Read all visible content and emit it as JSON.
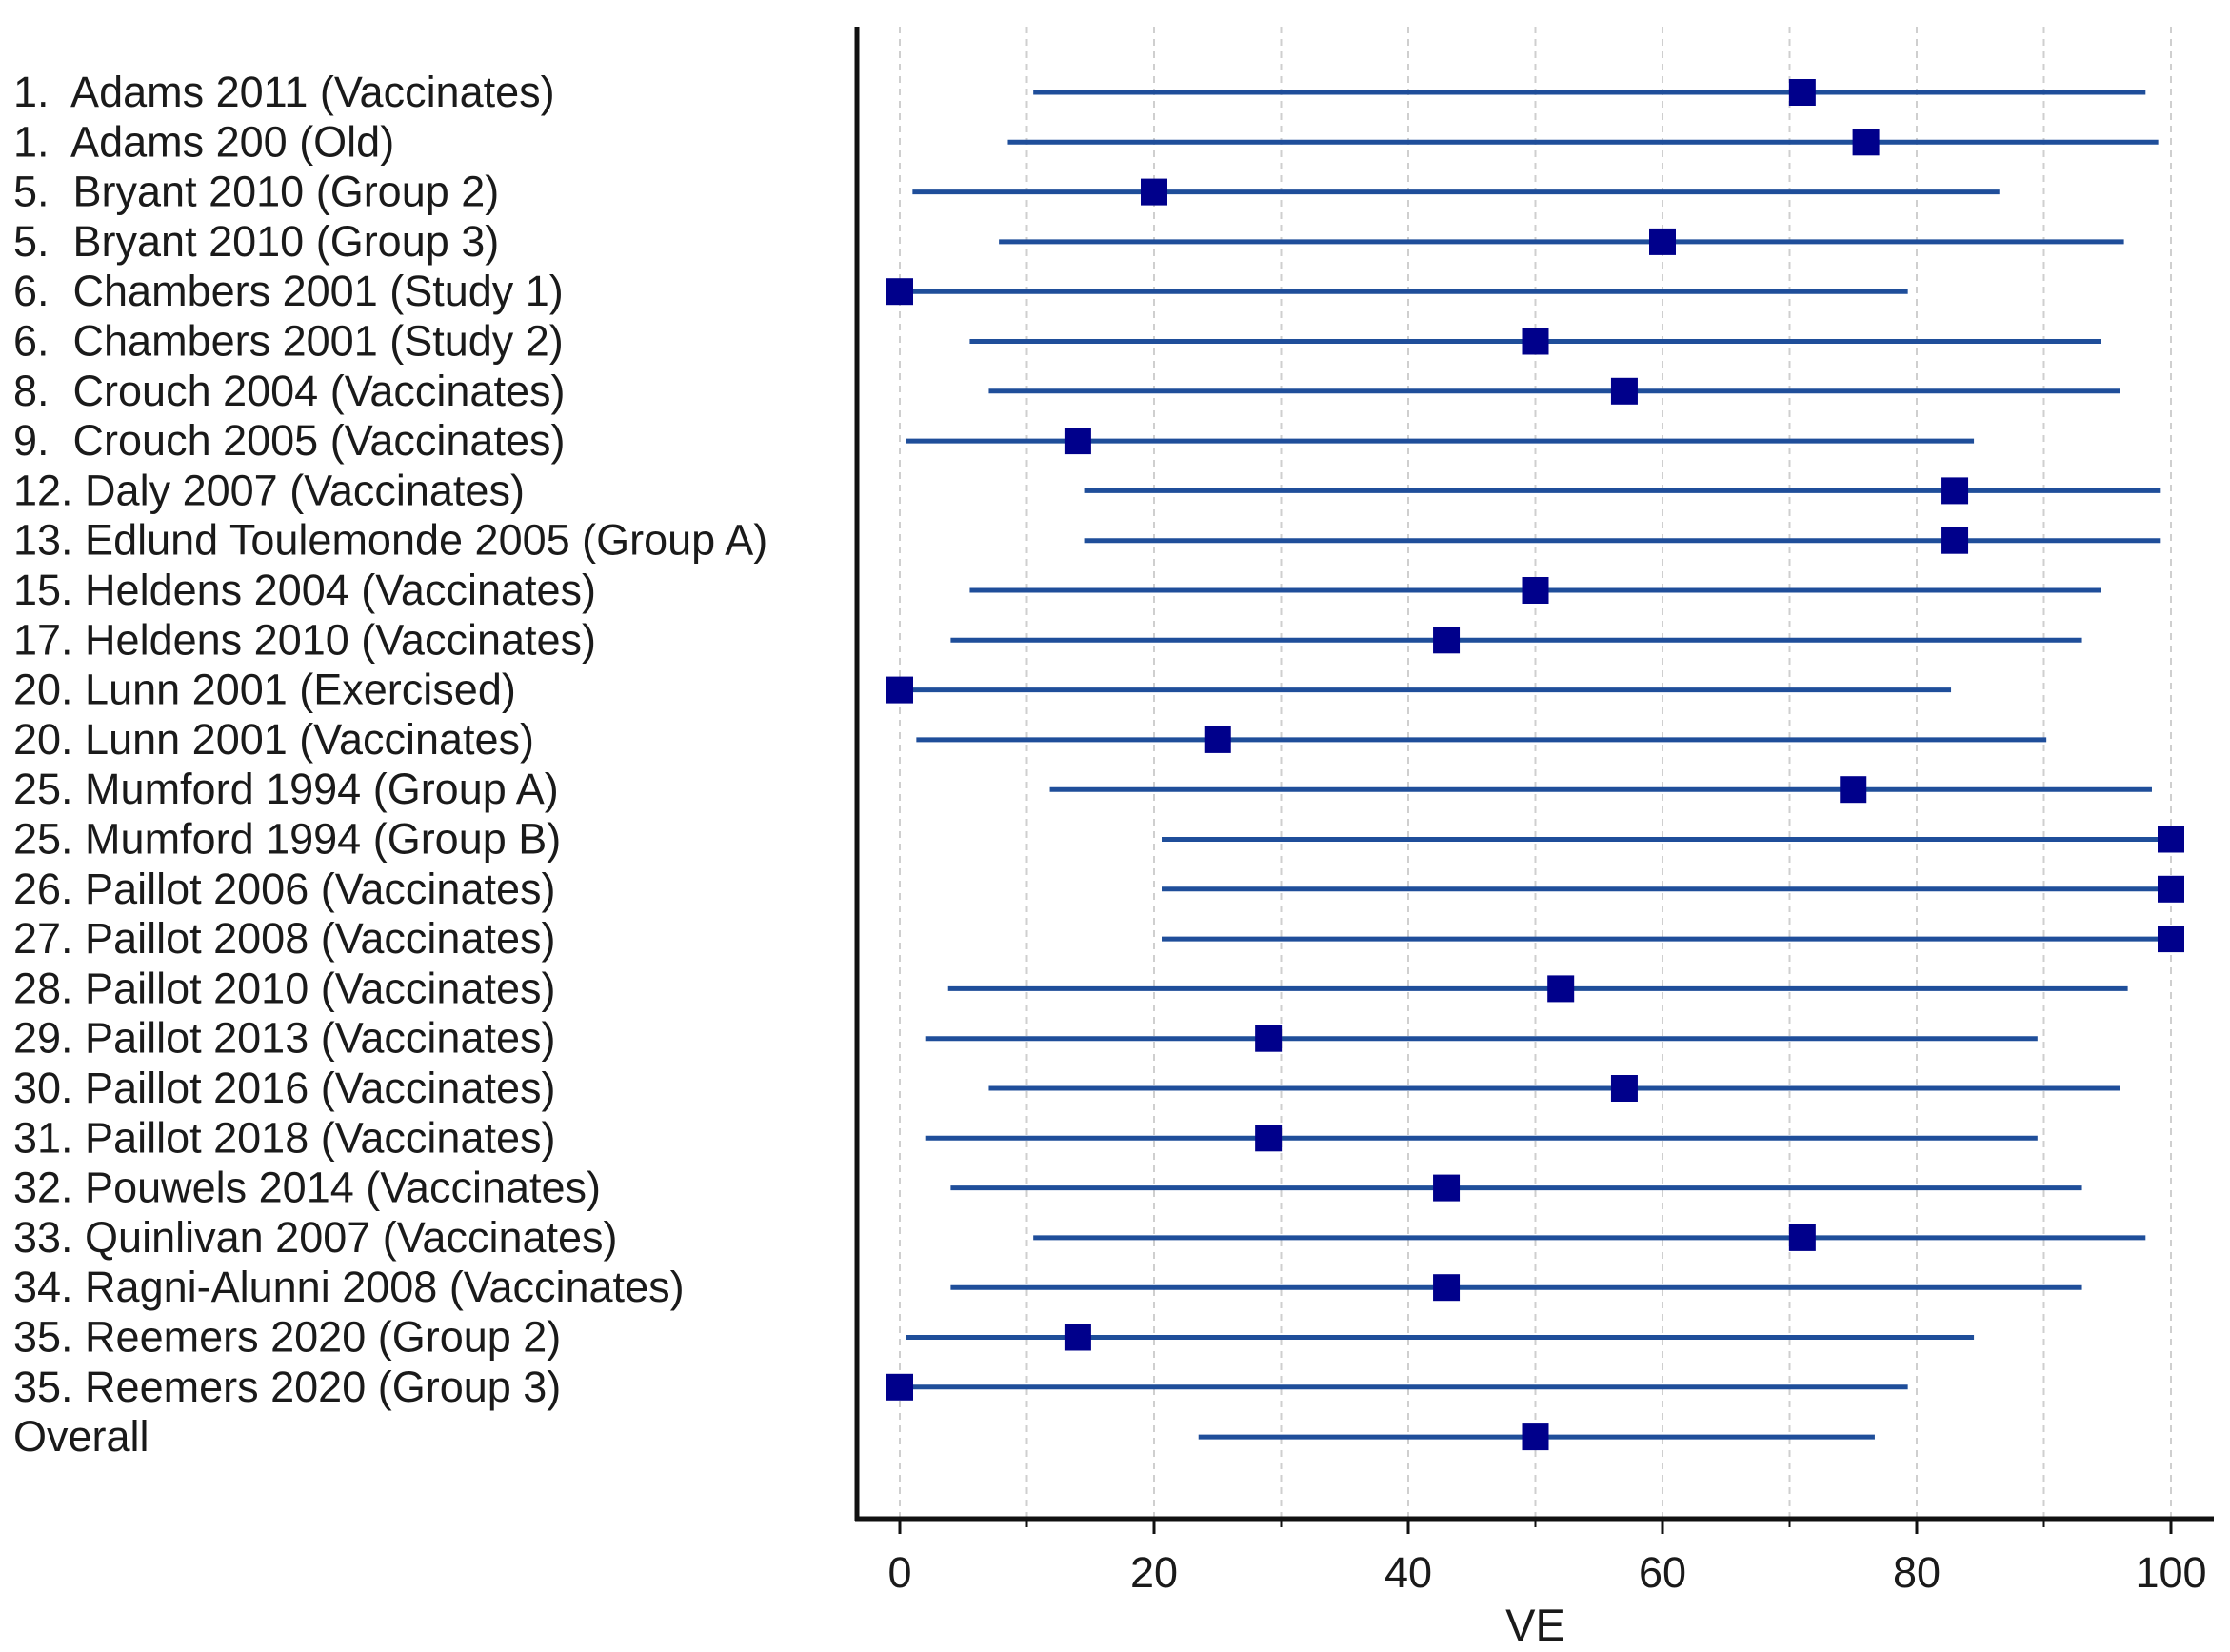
{
  "chart_data": {
    "type": "forest",
    "title": "",
    "xlabel": "VE",
    "ylabel": "",
    "xlim": [
      -3,
      103
    ],
    "xticks": [
      0,
      20,
      40,
      60,
      80,
      100
    ],
    "minor_ticks": [
      10,
      30,
      50,
      70,
      90
    ],
    "grid": "vertical-dashed",
    "marker_color": "#00008b",
    "ci_color": "#1f4e9a",
    "axis_color": "#111111",
    "grid_color": "#cfcfcf",
    "studies": [
      {
        "label": "1.  Adams 2011 (Vaccinates)",
        "estimate": 71,
        "lower": 10.5,
        "upper": 98
      },
      {
        "label": "1.  Adams 200 (Old)",
        "estimate": 76,
        "lower": 8.5,
        "upper": 99
      },
      {
        "label": "5.  Bryant 2010 (Group 2)",
        "estimate": 20,
        "lower": 1,
        "upper": 86.5
      },
      {
        "label": "5.  Bryant 2010 (Group 3)",
        "estimate": 60,
        "lower": 7.8,
        "upper": 96.3
      },
      {
        "label": "6.  Chambers 2001 (Study 1)",
        "estimate": 0,
        "lower": 0,
        "upper": 79.3
      },
      {
        "label": "6.  Chambers 2001 (Study 2)",
        "estimate": 50,
        "lower": 5.5,
        "upper": 94.5
      },
      {
        "label": "8.  Crouch 2004 (Vaccinates)",
        "estimate": 57,
        "lower": 7,
        "upper": 96
      },
      {
        "label": "9.  Crouch 2005 (Vaccinates)",
        "estimate": 14,
        "lower": 0.5,
        "upper": 84.5
      },
      {
        "label": "12. Daly 2007 (Vaccinates)",
        "estimate": 83,
        "lower": 14.5,
        "upper": 99.2
      },
      {
        "label": "13. Edlund Toulemonde 2005 (Group A)",
        "estimate": 83,
        "lower": 14.5,
        "upper": 99.2
      },
      {
        "label": "15. Heldens 2004 (Vaccinates)",
        "estimate": 50,
        "lower": 5.5,
        "upper": 94.5
      },
      {
        "label": "17. Heldens 2010 (Vaccinates)",
        "estimate": 43,
        "lower": 4,
        "upper": 93
      },
      {
        "label": "20. Lunn 2001 (Exercised)",
        "estimate": 0,
        "lower": 0,
        "upper": 82.7
      },
      {
        "label": "20. Lunn 2001 (Vaccinates)",
        "estimate": 25,
        "lower": 1.3,
        "upper": 90.2
      },
      {
        "label": "25. Mumford 1994 (Group A)",
        "estimate": 75,
        "lower": 11.8,
        "upper": 98.5
      },
      {
        "label": "25. Mumford 1994 (Group B)",
        "estimate": 100,
        "lower": 20.6,
        "upper": 100
      },
      {
        "label": "26. Paillot 2006 (Vaccinates)",
        "estimate": 100,
        "lower": 20.6,
        "upper": 100
      },
      {
        "label": "27. Paillot 2008 (Vaccinates)",
        "estimate": 100,
        "lower": 20.6,
        "upper": 100
      },
      {
        "label": "28. Paillot 2010 (Vaccinates)",
        "estimate": 52,
        "lower": 3.8,
        "upper": 96.6
      },
      {
        "label": "29. Paillot 2013 (Vaccinates)",
        "estimate": 29,
        "lower": 2,
        "upper": 89.5
      },
      {
        "label": "30. Paillot 2016 (Vaccinates)",
        "estimate": 57,
        "lower": 7,
        "upper": 96
      },
      {
        "label": "31. Paillot 2018 (Vaccinates)",
        "estimate": 29,
        "lower": 2,
        "upper": 89.5
      },
      {
        "label": "32. Pouwels 2014 (Vaccinates)",
        "estimate": 43,
        "lower": 4,
        "upper": 93
      },
      {
        "label": "33. Quinlivan 2007 (Vaccinates)",
        "estimate": 71,
        "lower": 10.5,
        "upper": 98
      },
      {
        "label": "34. Ragni-Alunni 2008 (Vaccinates)",
        "estimate": 43,
        "lower": 4,
        "upper": 93
      },
      {
        "label": "35. Reemers 2020 (Group 2)",
        "estimate": 14,
        "lower": 0.5,
        "upper": 84.5
      },
      {
        "label": "35. Reemers 2020 (Group 3)",
        "estimate": 0,
        "lower": 0,
        "upper": 79.3
      },
      {
        "label": "Overall",
        "estimate": 50,
        "lower": 23.5,
        "upper": 76.7
      }
    ]
  }
}
